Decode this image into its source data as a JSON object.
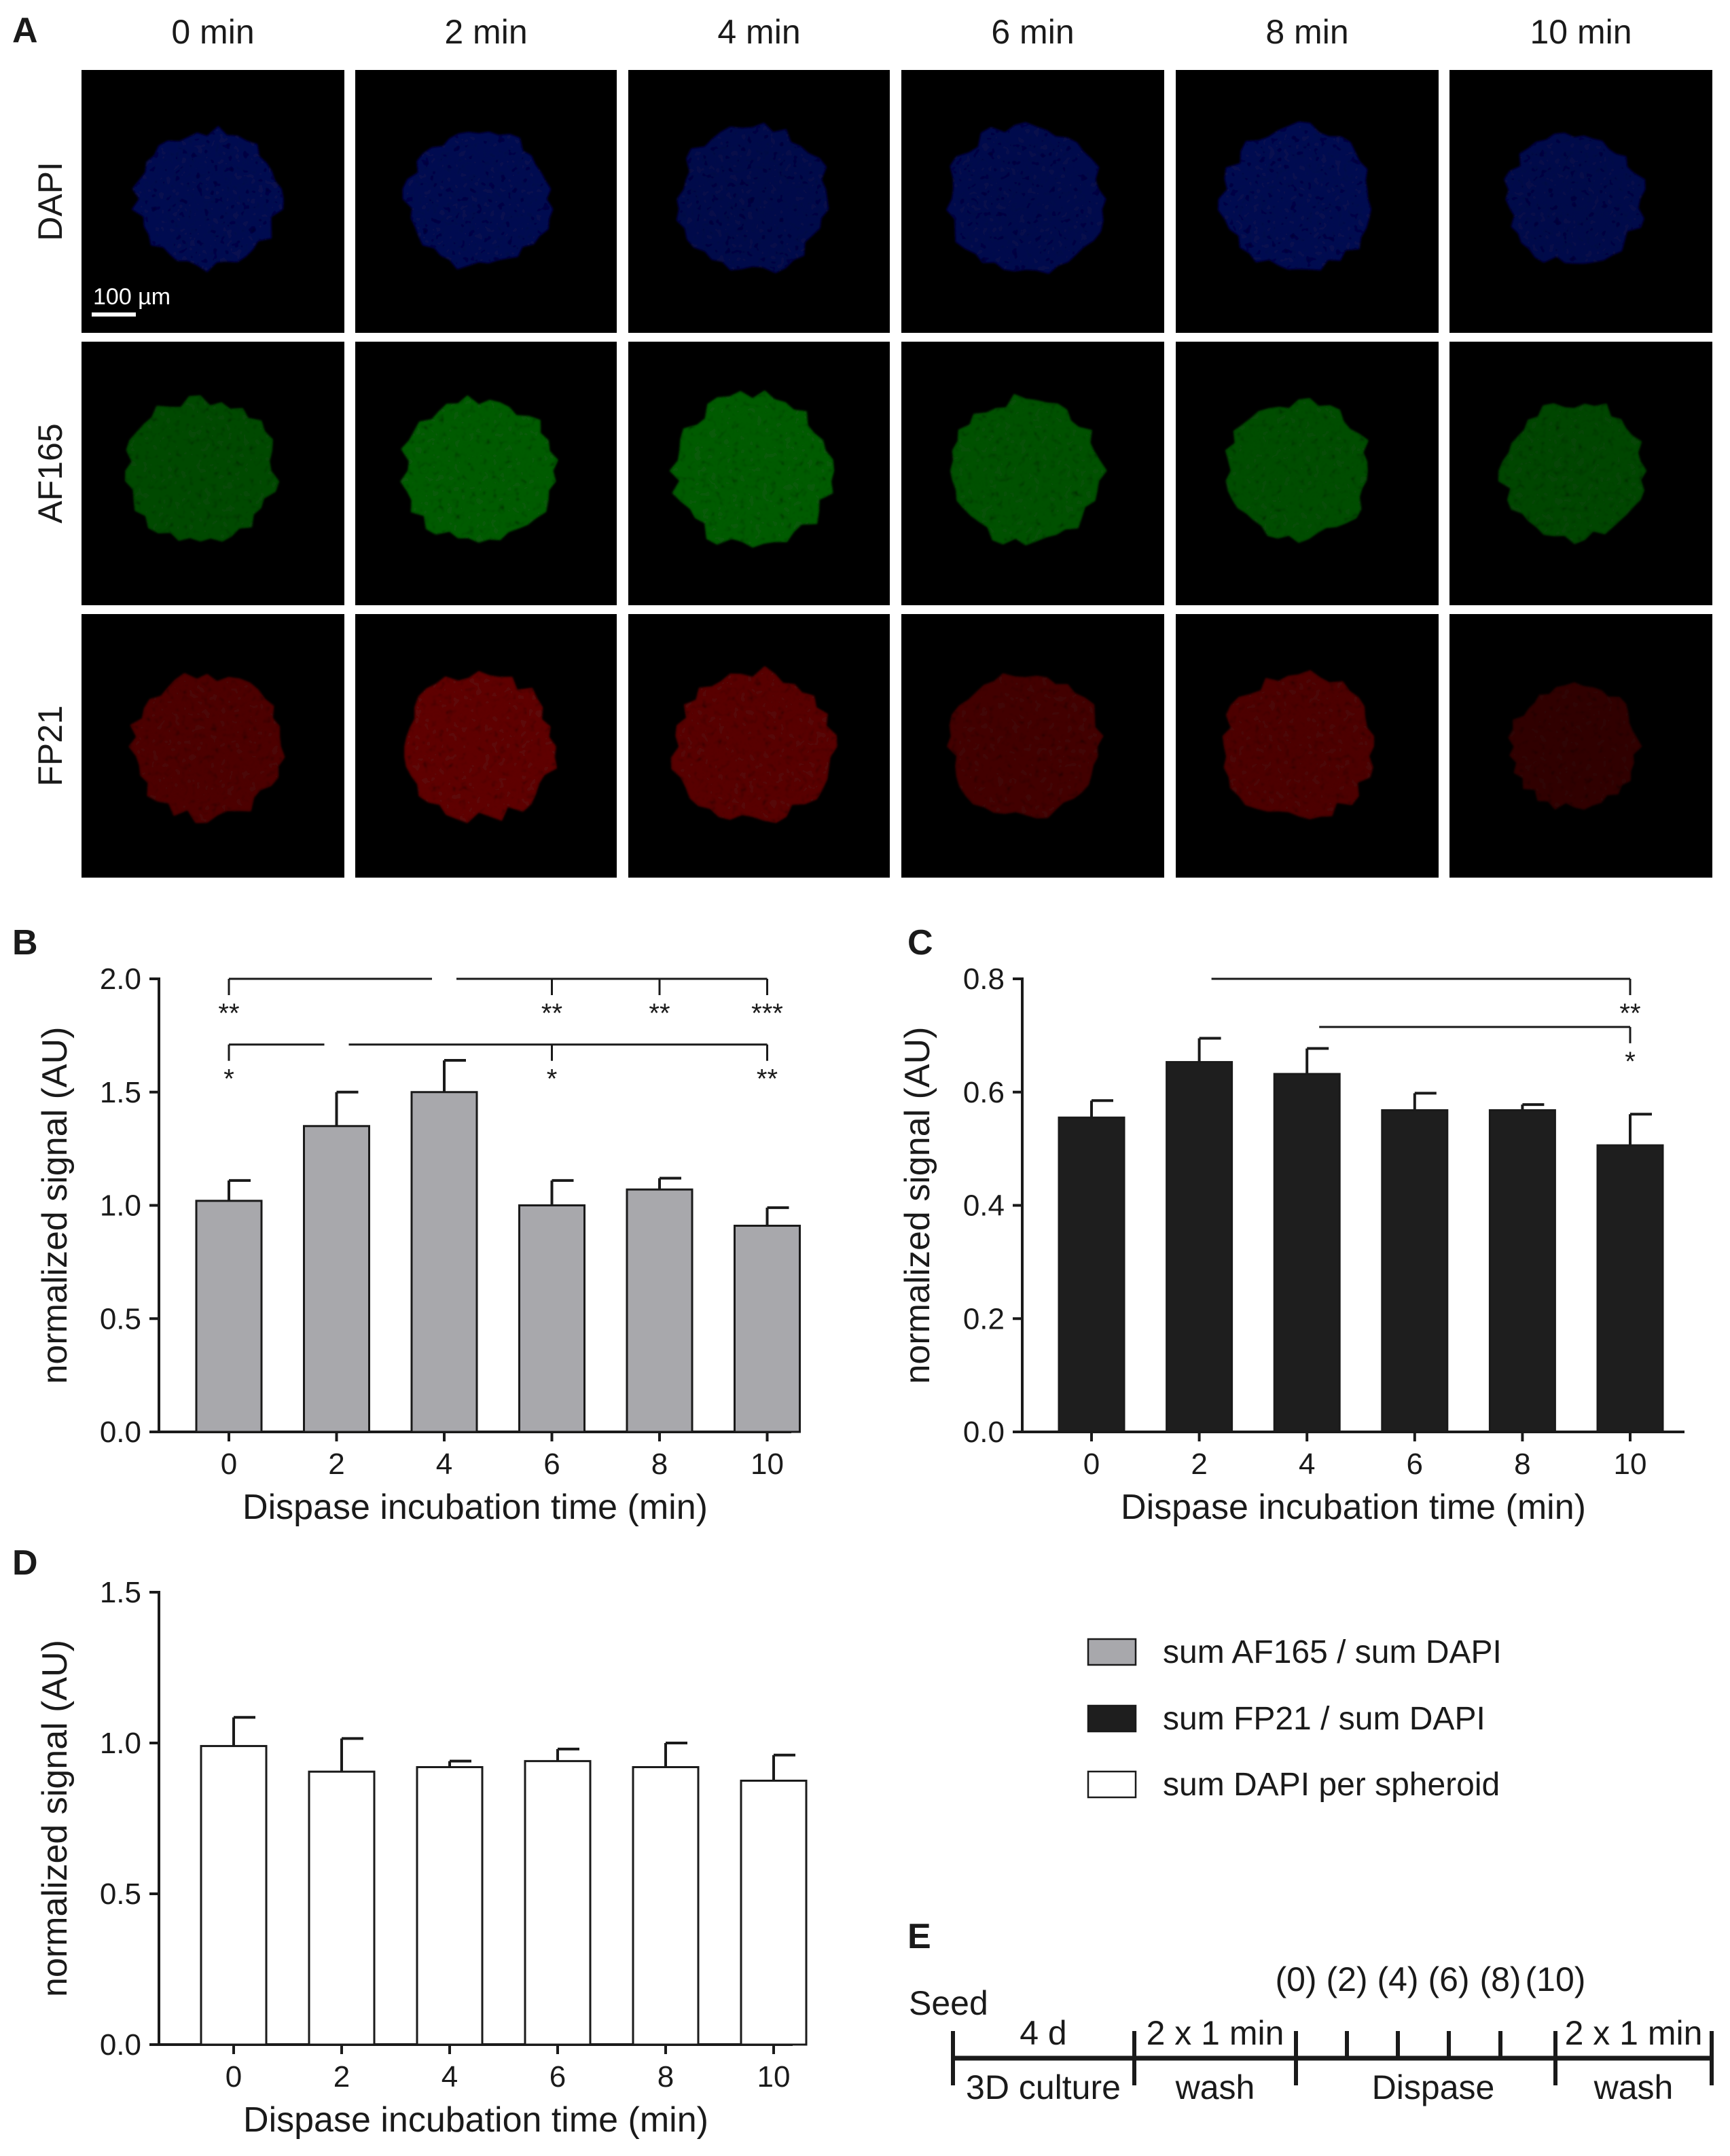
{
  "panel_letters": [
    "A",
    "B",
    "C",
    "D",
    "E"
  ],
  "panel_a": {
    "columns": [
      "0 min",
      "2 min",
      "4 min",
      "6 min",
      "8 min",
      "10 min"
    ],
    "rows": [
      {
        "label": "DAPI",
        "color": "#1e22b0",
        "intensity": [
          1.0,
          1.0,
          0.9,
          0.95,
          1.0,
          0.9
        ],
        "size": [
          1.0,
          1.0,
          1.05,
          1.08,
          1.05,
          0.95
        ]
      },
      {
        "label": "AF165",
        "color": "#1ec81e",
        "intensity": [
          0.75,
          1.0,
          1.0,
          0.85,
          0.8,
          0.7
        ],
        "size": [
          1.05,
          1.05,
          1.1,
          1.05,
          1.0,
          1.0
        ]
      },
      {
        "label": "FP21",
        "color": "#d01414",
        "intensity": [
          0.75,
          1.0,
          0.9,
          0.6,
          0.75,
          0.35
        ],
        "size": [
          1.05,
          1.05,
          1.1,
          1.05,
          1.05,
          0.9
        ]
      }
    ],
    "scale_bar_label": "100 µm"
  },
  "chart_data": [
    {
      "panel": "B",
      "type": "bar",
      "categories": [
        "0",
        "2",
        "4",
        "6",
        "8",
        "10"
      ],
      "values": [
        1.02,
        1.35,
        1.5,
        1.0,
        1.07,
        0.91
      ],
      "errors": [
        0.09,
        0.15,
        0.14,
        0.11,
        0.05,
        0.08
      ],
      "ylim": [
        0.0,
        2.0
      ],
      "yticks": [
        "0.0",
        "0.5",
        "1.0",
        "1.5",
        "2.0"
      ],
      "xlabel": "Dispase incubation time (min)",
      "ylabel": "normalized signal (AU)",
      "bar_color": "#a8a8ac",
      "significance": [
        {
          "from": "0",
          "to": "4",
          "level": 2.0,
          "dir": "left"
        },
        {
          "from": "4",
          "to": "10",
          "level": 2.0,
          "dir": "right",
          "labels": [
            {
              "x": "6",
              "text": "**"
            },
            {
              "x": "8",
              "text": "**"
            },
            {
              "x": "10",
              "text": "***"
            }
          ]
        },
        {
          "from": "0",
          "to": "2",
          "level": 1.71,
          "dir": "left"
        },
        {
          "from": "2",
          "to": "10",
          "level": 1.71,
          "dir": "right",
          "labels": [
            {
              "x": "6",
              "text": "*"
            },
            {
              "x": "10",
              "text": "**"
            }
          ]
        }
      ],
      "star_labels": [
        {
          "x": "0",
          "text": "**",
          "level": 2.0
        },
        {
          "x": "0",
          "text": "*",
          "level": 1.71
        }
      ]
    },
    {
      "panel": "C",
      "type": "bar",
      "categories": [
        "0",
        "2",
        "4",
        "6",
        "8",
        "10"
      ],
      "values": [
        0.555,
        0.653,
        0.632,
        0.568,
        0.568,
        0.506
      ],
      "errors": [
        0.03,
        0.042,
        0.045,
        0.03,
        0.01,
        0.055
      ],
      "ylim": [
        0.0,
        0.8
      ],
      "yticks": [
        "0.0",
        "0.2",
        "0.4",
        "0.6",
        "0.8"
      ],
      "xlabel": "Dispase incubation time (min)",
      "ylabel": "normalized signal (AU)",
      "bar_color": "#1e1e1e",
      "significance": [
        {
          "from": "2",
          "to": "10",
          "level": 0.8,
          "dir": "right",
          "labels": [
            {
              "x": "10",
              "text": "**"
            }
          ]
        },
        {
          "from": "4",
          "to": "10",
          "level": 0.715,
          "dir": "right",
          "labels": [
            {
              "x": "10",
              "text": "*"
            }
          ]
        }
      ],
      "star_labels": []
    },
    {
      "panel": "D",
      "type": "bar",
      "categories": [
        "0",
        "2",
        "4",
        "6",
        "8",
        "10"
      ],
      "values": [
        0.99,
        0.905,
        0.92,
        0.94,
        0.92,
        0.875
      ],
      "errors": [
        0.095,
        0.11,
        0.02,
        0.04,
        0.08,
        0.085
      ],
      "ylim": [
        0.0,
        1.5
      ],
      "yticks": [
        "0.0",
        "0.5",
        "1.0",
        "1.5"
      ],
      "xlabel": "Dispase incubation time (min)",
      "ylabel": "normalized signal (AU)",
      "bar_color": "#ffffff",
      "significance": [],
      "star_labels": []
    }
  ],
  "legend": [
    {
      "label": "sum AF165 / sum DAPI",
      "color": "#a8a8ac"
    },
    {
      "label": "sum FP21 / sum DAPI",
      "color": "#1e1e1e"
    },
    {
      "label": "sum DAPI per spheroid",
      "color": "#ffffff"
    }
  ],
  "timeline": {
    "seed": "Seed",
    "culture_top": "4 d",
    "culture_bottom": "3D culture",
    "wash1_top": "2 x 1 min",
    "wash1_bottom": "wash",
    "dispase_ticks": [
      "(0)",
      "(2)",
      "(4)",
      "(6)",
      "(8)",
      "(10)"
    ],
    "dispase_bottom": "Dispase",
    "wash2_top": "2 x 1 min",
    "wash2_bottom": "wash"
  }
}
